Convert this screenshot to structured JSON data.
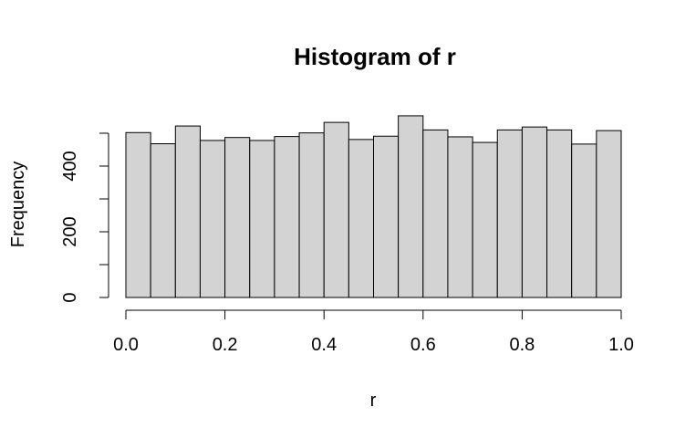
{
  "chart_data": {
    "type": "bar",
    "title": "Histogram of r",
    "xlabel": "r",
    "ylabel": "Frequency",
    "xlim": [
      0.0,
      1.0
    ],
    "ylim": [
      0,
      550
    ],
    "bin_width": 0.05,
    "bins": [
      0.0,
      0.05,
      0.1,
      0.15,
      0.2,
      0.25,
      0.3,
      0.35,
      0.4,
      0.45,
      0.5,
      0.55,
      0.6,
      0.65,
      0.7,
      0.75,
      0.8,
      0.85,
      0.9,
      0.95
    ],
    "values": [
      502,
      468,
      522,
      478,
      487,
      478,
      490,
      501,
      533,
      481,
      491,
      553,
      510,
      489,
      472,
      510,
      519,
      510,
      467,
      508
    ],
    "x_ticks": [
      "0.0",
      "0.2",
      "0.4",
      "0.6",
      "0.8",
      "1.0"
    ],
    "x_tick_values": [
      0.0,
      0.2,
      0.4,
      0.6,
      0.8,
      1.0
    ],
    "y_ticks": [
      0,
      100,
      200,
      300,
      400,
      500
    ],
    "y_tick_labels": [
      "0",
      "",
      "200",
      "",
      "400",
      ""
    ],
    "grid": false,
    "colors": {
      "bar_fill": "#d3d3d3",
      "bar_stroke": "#000000",
      "axis": "#000000"
    }
  }
}
